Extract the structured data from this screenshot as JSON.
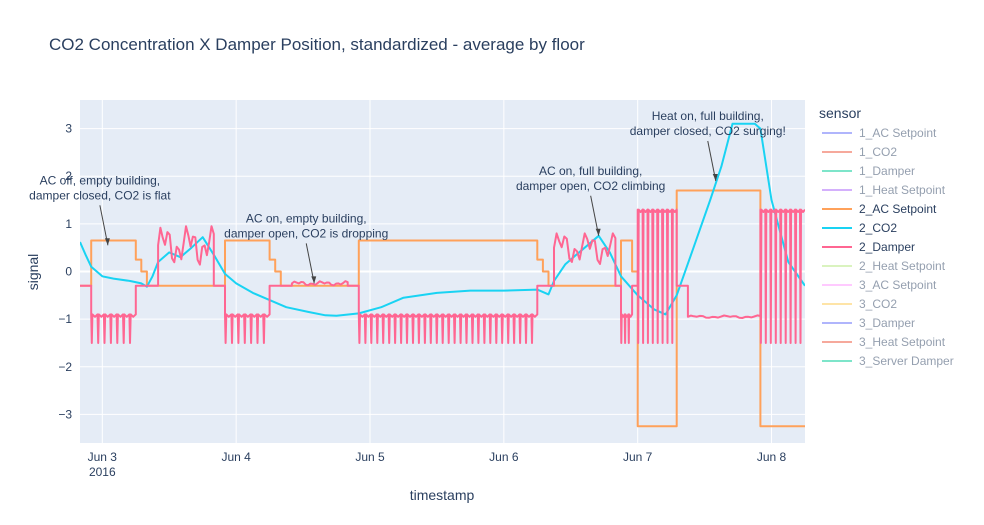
{
  "chart_data": {
    "type": "line",
    "title": "CO2 Concentration X Damper Position, standardized - average by floor",
    "xlabel": "timestamp",
    "ylabel": "signal",
    "xlim": [
      "2016-06-02 20:00",
      "2016-06-08 06:00"
    ],
    "ylim": [
      -3.6,
      3.6
    ],
    "x_ticks": [
      {
        "label": "Jun 3",
        "sub": "2016",
        "value": "2016-06-03 00:00"
      },
      {
        "label": "Jun 4",
        "value": "2016-06-04 00:00"
      },
      {
        "label": "Jun 5",
        "value": "2016-06-05 00:00"
      },
      {
        "label": "Jun 6",
        "value": "2016-06-06 00:00"
      },
      {
        "label": "Jun 7",
        "value": "2016-06-07 00:00"
      },
      {
        "label": "Jun 8",
        "value": "2016-06-08 00:00"
      }
    ],
    "y_ticks": [
      -3,
      -2,
      -1,
      0,
      1,
      2,
      3
    ],
    "grid": true,
    "legend_title": "sensor",
    "legend_position": "right",
    "legend": [
      {
        "name": "1_AC Setpoint",
        "color": "#636efa",
        "visible": false
      },
      {
        "name": "1_CO2",
        "color": "#EF553B",
        "visible": false
      },
      {
        "name": "1_Damper",
        "color": "#00cc96",
        "visible": false
      },
      {
        "name": "1_Heat Setpoint",
        "color": "#ab63fa",
        "visible": false
      },
      {
        "name": "2_AC Setpoint",
        "color": "#FFA15A",
        "visible": true
      },
      {
        "name": "2_CO2",
        "color": "#19d3f3",
        "visible": true
      },
      {
        "name": "2_Damper",
        "color": "#FF6692",
        "visible": true
      },
      {
        "name": "2_Heat Setpoint",
        "color": "#B6E880",
        "visible": false
      },
      {
        "name": "3_AC Setpoint",
        "color": "#FF97FF",
        "visible": false
      },
      {
        "name": "3_CO2",
        "color": "#FECB52",
        "visible": false
      },
      {
        "name": "3_Damper",
        "color": "#636efa",
        "visible": false
      },
      {
        "name": "3_Heat Setpoint",
        "color": "#EF553B",
        "visible": false
      },
      {
        "name": "3_Server Damper",
        "color": "#00cc96",
        "visible": false
      }
    ],
    "series": [
      {
        "name": "2_AC Setpoint",
        "color": "#FFA15A",
        "step": true,
        "points": [
          [
            "2016-06-02 20:00",
            -0.3
          ],
          [
            "2016-06-02 22:00",
            -0.3
          ],
          [
            "2016-06-02 22:00",
            0.65
          ],
          [
            "2016-06-03 06:00",
            0.65
          ],
          [
            "2016-06-03 06:00",
            0.25
          ],
          [
            "2016-06-03 07:00",
            0.25
          ],
          [
            "2016-06-03 07:00",
            0.0
          ],
          [
            "2016-06-03 08:00",
            0.0
          ],
          [
            "2016-06-03 08:00",
            -0.3
          ],
          [
            "2016-06-03 22:00",
            -0.3
          ],
          [
            "2016-06-03 22:00",
            0.65
          ],
          [
            "2016-06-04 06:00",
            0.65
          ],
          [
            "2016-06-04 06:00",
            0.25
          ],
          [
            "2016-06-04 07:00",
            0.25
          ],
          [
            "2016-06-04 07:00",
            0.0
          ],
          [
            "2016-06-04 08:00",
            0.0
          ],
          [
            "2016-06-04 08:00",
            -0.3
          ],
          [
            "2016-06-04 22:00",
            -0.3
          ],
          [
            "2016-06-04 22:00",
            0.65
          ],
          [
            "2016-06-06 06:00",
            0.65
          ],
          [
            "2016-06-06 06:00",
            0.25
          ],
          [
            "2016-06-06 07:00",
            0.25
          ],
          [
            "2016-06-06 07:00",
            0.0
          ],
          [
            "2016-06-06 08:00",
            0.0
          ],
          [
            "2016-06-06 08:00",
            -0.3
          ],
          [
            "2016-06-06 21:00",
            -0.3
          ],
          [
            "2016-06-06 21:00",
            0.65
          ],
          [
            "2016-06-06 23:00",
            0.65
          ],
          [
            "2016-06-06 23:00",
            0.0
          ],
          [
            "2016-06-07 00:00",
            0.0
          ],
          [
            "2016-06-07 00:00",
            -3.25
          ],
          [
            "2016-06-07 07:00",
            -3.25
          ],
          [
            "2016-06-07 07:00",
            1.7
          ],
          [
            "2016-06-07 22:00",
            1.7
          ],
          [
            "2016-06-07 22:00",
            -3.25
          ],
          [
            "2016-06-08 06:00",
            -3.25
          ]
        ]
      },
      {
        "name": "2_CO2",
        "color": "#19d3f3",
        "step": false,
        "points": [
          [
            "2016-06-02 20:00",
            0.62
          ],
          [
            "2016-06-02 21:00",
            0.35
          ],
          [
            "2016-06-02 22:00",
            0.1
          ],
          [
            "2016-06-03 00:00",
            -0.1
          ],
          [
            "2016-06-03 02:00",
            -0.15
          ],
          [
            "2016-06-03 05:00",
            -0.2
          ],
          [
            "2016-06-03 07:00",
            -0.25
          ],
          [
            "2016-06-03 08:00",
            -0.32
          ],
          [
            "2016-06-03 09:00",
            -0.1
          ],
          [
            "2016-06-03 10:00",
            0.2
          ],
          [
            "2016-06-03 12:00",
            0.4
          ],
          [
            "2016-06-03 14:00",
            0.3
          ],
          [
            "2016-06-03 16:00",
            0.5
          ],
          [
            "2016-06-03 18:00",
            0.72
          ],
          [
            "2016-06-03 20:00",
            0.35
          ],
          [
            "2016-06-03 22:00",
            -0.05
          ],
          [
            "2016-06-04 00:00",
            -0.25
          ],
          [
            "2016-06-04 03:00",
            -0.45
          ],
          [
            "2016-06-04 06:00",
            -0.6
          ],
          [
            "2016-06-04 09:00",
            -0.75
          ],
          [
            "2016-06-04 13:00",
            -0.85
          ],
          [
            "2016-06-04 16:00",
            -0.92
          ],
          [
            "2016-06-04 18:00",
            -0.93
          ],
          [
            "2016-06-04 22:00",
            -0.88
          ],
          [
            "2016-06-05 02:00",
            -0.75
          ],
          [
            "2016-06-05 06:00",
            -0.55
          ],
          [
            "2016-06-05 12:00",
            -0.45
          ],
          [
            "2016-06-05 18:00",
            -0.4
          ],
          [
            "2016-06-06 00:00",
            -0.4
          ],
          [
            "2016-06-06 06:00",
            -0.38
          ],
          [
            "2016-06-06 08:00",
            -0.48
          ],
          [
            "2016-06-06 09:00",
            -0.2
          ],
          [
            "2016-06-06 11:00",
            0.15
          ],
          [
            "2016-06-06 13:00",
            0.35
          ],
          [
            "2016-06-06 15:00",
            0.55
          ],
          [
            "2016-06-06 17:00",
            0.75
          ],
          [
            "2016-06-06 19:00",
            0.4
          ],
          [
            "2016-06-06 21:00",
            -0.1
          ],
          [
            "2016-06-07 00:00",
            -0.5
          ],
          [
            "2016-06-07 03:00",
            -0.8
          ],
          [
            "2016-06-07 05:00",
            -0.9
          ],
          [
            "2016-06-07 07:00",
            -0.5
          ],
          [
            "2016-06-07 10:00",
            0.5
          ],
          [
            "2016-06-07 13:00",
            1.5
          ],
          [
            "2016-06-07 15:00",
            2.2
          ],
          [
            "2016-06-07 17:00",
            3.1
          ],
          [
            "2016-06-07 21:00",
            3.1
          ],
          [
            "2016-06-07 22:00",
            3.0
          ],
          [
            "2016-06-08 00:00",
            1.5
          ],
          [
            "2016-06-08 03:00",
            0.2
          ],
          [
            "2016-06-08 06:00",
            -0.3
          ]
        ]
      }
    ],
    "damper_series": {
      "name": "2_Damper",
      "color": "#FF6692",
      "base_level": -0.3,
      "occupied_periods": [
        {
          "start": "2016-06-03 10:00",
          "end": "2016-06-03 20:00",
          "level": 0.55,
          "range": [
            0.0,
            0.95
          ]
        },
        {
          "start": "2016-06-04 10:00",
          "end": "2016-06-04 20:00",
          "level": -0.25,
          "range": [
            -0.3,
            -0.2
          ]
        },
        {
          "start": "2016-06-06 09:00",
          "end": "2016-06-06 20:00",
          "level": 0.5,
          "range": [
            0.0,
            0.8
          ]
        },
        {
          "start": "2016-06-07 09:00",
          "end": "2016-06-07 22:00",
          "level": -0.95,
          "range": [
            -0.98,
            -0.92
          ]
        }
      ],
      "oscillation_periods": [
        {
          "start": "2016-06-02 22:00",
          "end": "2016-06-03 06:00",
          "low": -1.5,
          "high": -0.9,
          "pulses": 7
        },
        {
          "start": "2016-06-03 22:00",
          "end": "2016-06-04 06:00",
          "low": -1.5,
          "high": -0.9,
          "pulses": 7
        },
        {
          "start": "2016-06-04 22:00",
          "end": "2016-06-06 06:00",
          "low": -1.5,
          "high": -0.9,
          "pulses": 30
        },
        {
          "start": "2016-06-06 21:00",
          "end": "2016-06-06 23:00",
          "low": -1.5,
          "high": -0.9,
          "pulses": 3
        },
        {
          "start": "2016-06-07 00:00",
          "end": "2016-06-07 07:00",
          "low": -1.5,
          "high": 1.3,
          "pulses": 8
        },
        {
          "start": "2016-06-07 22:00",
          "end": "2016-06-08 06:00",
          "low": -1.5,
          "high": 1.3,
          "pulses": 9
        }
      ]
    },
    "annotations": [
      {
        "text": [
          "AC off, empty building,",
          "damper closed, CO2 is flat"
        ],
        "x": "2016-06-03 01:00",
        "y": 0.55
      },
      {
        "text": [
          "AC on, empty building,",
          "damper open, CO2 is dropping"
        ],
        "x": "2016-06-04 14:00",
        "y": -0.25
      },
      {
        "text": [
          "AC on, full building,",
          "damper open, CO2 climbing"
        ],
        "x": "2016-06-06 17:00",
        "y": 0.75
      },
      {
        "text": [
          "Heat on, full building,",
          "damper closed, CO2 surging!"
        ],
        "x": "2016-06-07 14:00",
        "y": 1.9
      }
    ]
  }
}
